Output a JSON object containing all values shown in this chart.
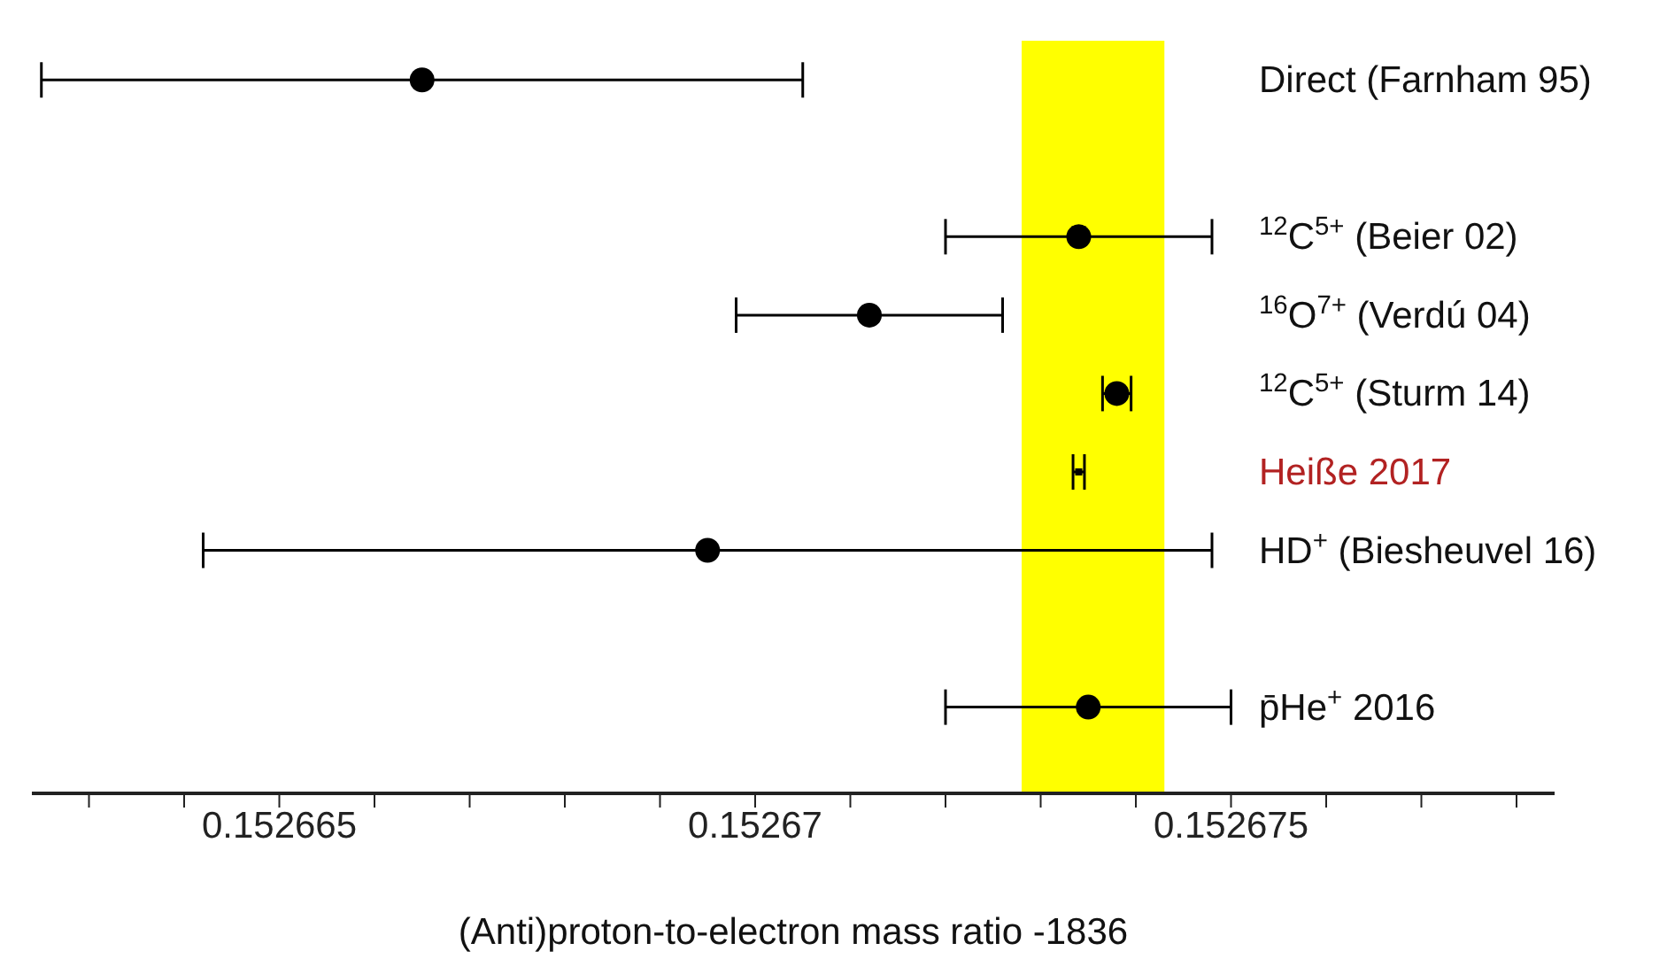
{
  "chart_data": {
    "type": "scatter",
    "xlabel": "(Anti)proton-to-electron mass ratio  -1836",
    "categories": [
      "Direct (Farnham 95)",
      null,
      "$^{12}$C$^{5+}$  (Beier 02)",
      "$^{16}$O$^{7+}$  (Verdú 04)",
      "$^{12}$C$^{5+}$  (Sturm 14)",
      "Heiße 2017",
      "HD$^{+}$ (Biesheuvel 16)",
      null,
      "p̄He$^{+}$  2016"
    ],
    "series": [
      {
        "color": "#000000",
        "marker": "circle",
        "values": [
          0.1526665,
          null,
          0.1526734,
          0.1526712,
          0.1526738,
          null,
          0.1526695,
          null,
          0.1526735
        ],
        "errors": [
          4e-06,
          null,
          1.4e-06,
          1.4e-06,
          1.5e-07,
          null,
          5.3e-06,
          null,
          1.5e-06
        ]
      },
      {
        "color": "#000000",
        "marker": "square",
        "values": [
          null,
          null,
          null,
          null,
          null,
          0.1526734,
          null,
          null,
          null
        ],
        "errors": [
          null,
          null,
          null,
          null,
          null,
          6e-08,
          null,
          null,
          null
        ]
      }
    ],
    "orientation": "horizontal",
    "xlim": [
      0.1526624,
      0.1526784
    ],
    "xticks": [
      {
        "value": 0.152663,
        "label": null
      },
      {
        "value": 0.152664,
        "label": null
      },
      {
        "value": 0.152665,
        "label": "0.152665"
      },
      {
        "value": 0.152666,
        "label": null
      },
      {
        "value": 0.152667,
        "label": null
      },
      {
        "value": 0.152668,
        "label": null
      },
      {
        "value": 0.152669,
        "label": null
      },
      {
        "value": 0.15267,
        "label": "0.15267"
      },
      {
        "value": 0.152671,
        "label": null
      },
      {
        "value": 0.152672,
        "label": null
      },
      {
        "value": 0.152673,
        "label": null
      },
      {
        "value": 0.152674,
        "label": null
      },
      {
        "value": 0.152675,
        "label": "0.152675"
      },
      {
        "value": 0.152676,
        "label": null
      },
      {
        "value": 0.152677,
        "label": null
      },
      {
        "value": 0.152678,
        "label": null
      }
    ],
    "bands": [
      {
        "axis": "x",
        "from": 0.1526728,
        "to": 0.1526743,
        "color": "#ffff00"
      }
    ]
  }
}
